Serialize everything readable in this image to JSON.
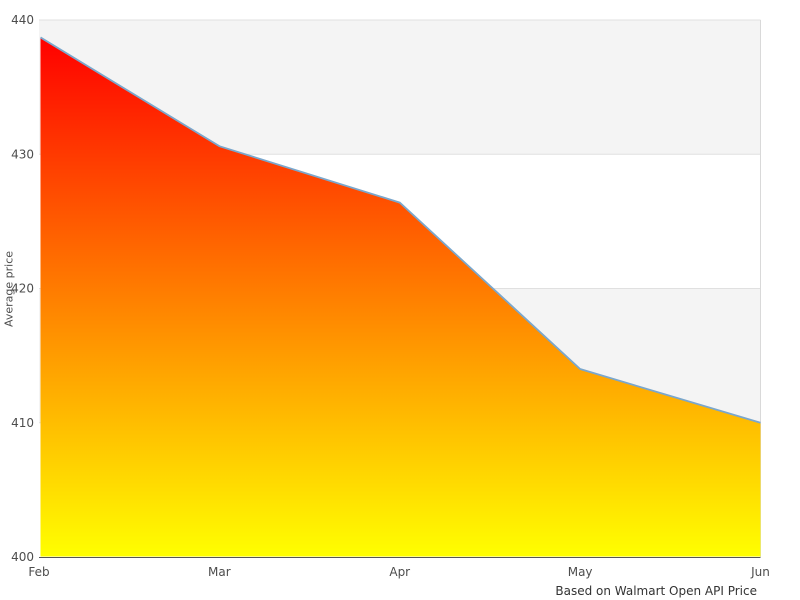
{
  "caption": "Based on Walmart Open API Price",
  "chart_data": {
    "type": "area",
    "categories": [
      "Feb",
      "Mar",
      "Apr",
      "May",
      "Jun"
    ],
    "values": [
      438.7,
      430.6,
      426.4,
      414.0,
      410.0
    ],
    "series": [
      {
        "name": "Average price",
        "values": [
          438.7,
          430.6,
          426.4,
          414.0,
          410.0
        ]
      }
    ],
    "title": "",
    "xlabel": "",
    "ylabel": "Average price",
    "ylim": [
      400,
      440
    ],
    "yticks": [
      400,
      410,
      420,
      430,
      440
    ],
    "grid": "horizontal gridlines with alternating band fills (gray top band, then white, alternating)",
    "legend": "none",
    "colors": {
      "line": "#7ba7cc",
      "area_gradient_top": "#ff0000",
      "area_gradient_bottom": "#ffff00",
      "band_fill": "#f4f4f4",
      "gridline": "#e0e0e0",
      "plot_right_border": "#d9d9d9",
      "axis_line": "#555555",
      "tick_text": "#4d4d4d",
      "caption_text": "#333333"
    }
  }
}
